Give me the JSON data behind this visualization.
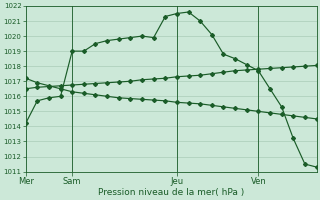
{
  "background_color": "#cce8d8",
  "grid_color": "#aaccb8",
  "line_color": "#1a5c28",
  "xlabel": "Pression niveau de la mer( hPa )",
  "ylim": [
    1011,
    1022
  ],
  "yticks": [
    1011,
    1012,
    1013,
    1014,
    1015,
    1016,
    1017,
    1018,
    1019,
    1020,
    1021,
    1022
  ],
  "day_labels": [
    "Mer",
    "Sam",
    "Jeu",
    "Ven"
  ],
  "day_positions": [
    0,
    4,
    13,
    20
  ],
  "vline_positions": [
    4,
    13,
    20
  ],
  "series1": [
    1014.2,
    1015.7,
    1015.9,
    1016.0,
    1019.0,
    1019.0,
    1019.5,
    1019.7,
    1019.8,
    1019.9,
    1020.0,
    1019.9,
    1021.3,
    1021.5,
    1021.6,
    1021.0,
    1020.1,
    1018.8,
    1018.5,
    1018.1,
    1017.7,
    1016.5,
    1015.3,
    1013.2,
    1011.5,
    1011.3
  ],
  "series2": [
    1016.5,
    1016.6,
    1016.65,
    1016.7,
    1016.75,
    1016.8,
    1016.85,
    1016.9,
    1016.95,
    1017.0,
    1017.1,
    1017.15,
    1017.2,
    1017.3,
    1017.35,
    1017.4,
    1017.5,
    1017.6,
    1017.7,
    1017.75,
    1017.8,
    1017.85,
    1017.9,
    1017.95,
    1018.0,
    1018.05
  ],
  "series3": [
    1017.2,
    1016.9,
    1016.7,
    1016.5,
    1016.3,
    1016.2,
    1016.1,
    1016.0,
    1015.9,
    1015.85,
    1015.8,
    1015.75,
    1015.7,
    1015.6,
    1015.55,
    1015.5,
    1015.4,
    1015.3,
    1015.2,
    1015.1,
    1015.0,
    1014.9,
    1014.8,
    1014.7,
    1014.6,
    1014.5
  ],
  "n_points": 26,
  "marker": "D",
  "markersize": 2.0,
  "linewidth": 0.85,
  "ytick_fontsize": 5.0,
  "xtick_fontsize": 6.0,
  "xlabel_fontsize": 6.5
}
